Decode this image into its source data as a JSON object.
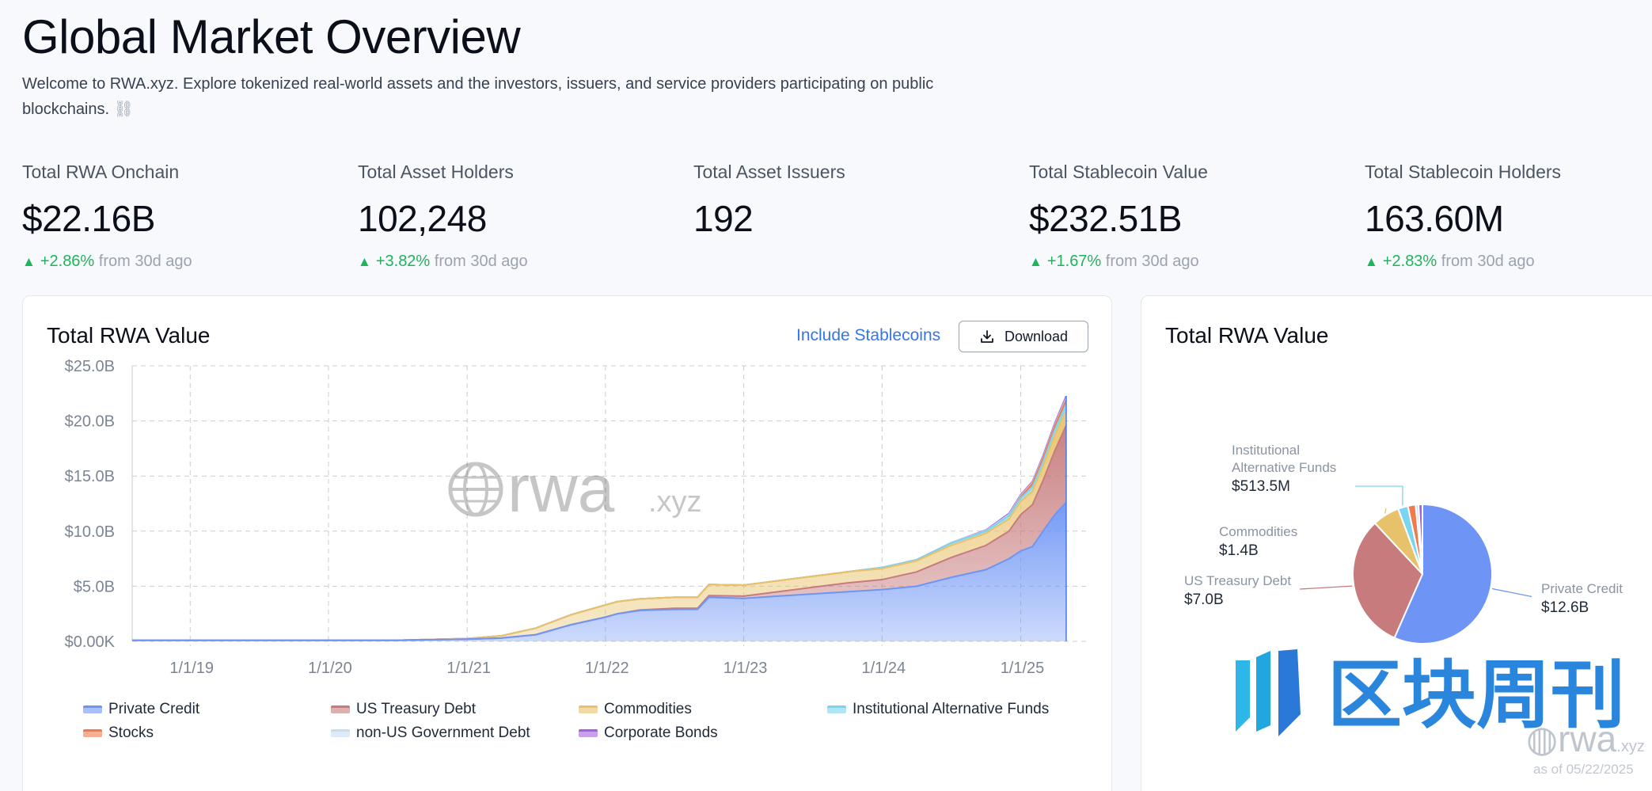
{
  "header": {
    "title": "Global Market Overview",
    "intro": "Welcome to RWA.xyz. Explore tokenized real-world assets and the investors, issuers, and service providers participating on public blockchains.",
    "intro_icon": "chain-link-icon"
  },
  "stats": [
    {
      "label": "Total RWA Onchain",
      "value": "$22.16B",
      "change": "+2.86%",
      "suffix": "from 30d ago"
    },
    {
      "label": "Total Asset Holders",
      "value": "102,248",
      "change": "+3.82%",
      "suffix": "from 30d ago"
    },
    {
      "label": "Total Asset Issuers",
      "value": "192",
      "change": "",
      "suffix": ""
    },
    {
      "label": "Total Stablecoin Value",
      "value": "$232.51B",
      "change": "+1.67%",
      "suffix": "from 30d ago"
    },
    {
      "label": "Total Stablecoin Holders",
      "value": "163.60M",
      "change": "+2.83%",
      "suffix": "from 30d ago"
    }
  ],
  "area_card": {
    "title": "Total RWA Value",
    "stablecoins_link": "Include Stablecoins",
    "download_label": "Download",
    "watermark": "rwa",
    "watermark_suffix": ".xyz"
  },
  "pie_card": {
    "title": "Total RWA Value",
    "watermark_cn": "区块周刊",
    "footer_brand": "rwa",
    "footer_brand_suffix": ".xyz",
    "as_of": "as of 05/22/2025"
  },
  "colors": {
    "private_credit": "#6e95f5",
    "us_treasury": "#c77b7c",
    "commodities": "#e8c26a",
    "institutional_alt": "#7ad6f0",
    "stocks": "#f07a4e",
    "non_us_gov": "#c6dcf1",
    "corporate_bonds": "#a35fe0",
    "up": "#1fb35b",
    "link": "#3576e4"
  },
  "chart_data": [
    {
      "type": "area",
      "title": "Total RWA Value",
      "x": [
        "2018-08",
        "2019-01",
        "2019-07",
        "2020-01",
        "2020-07",
        "2021-01",
        "2021-04",
        "2021-07",
        "2021-10",
        "2022-01",
        "2022-02",
        "2022-04",
        "2022-07",
        "2022-08",
        "2022-09",
        "2022-10",
        "2023-01",
        "2023-04",
        "2023-07",
        "2023-10",
        "2024-01",
        "2024-04",
        "2024-07",
        "2024-10",
        "2024-12",
        "2025-01",
        "2025-02",
        "2025-03",
        "2025-04",
        "2025-05"
      ],
      "x_ticks": [
        "1/1/19",
        "1/1/20",
        "1/1/21",
        "1/1/22",
        "1/1/23",
        "1/1/24",
        "1/1/25"
      ],
      "y_ticks": [
        "$0.00K",
        "$5.0B",
        "$10.0B",
        "$15.0B",
        "$20.0B",
        "$25.0B"
      ],
      "ylim": [
        0,
        25
      ],
      "grid": true,
      "legend_position": "bottom",
      "stacked": true,
      "series": [
        {
          "name": "Private Credit",
          "values": [
            0.1,
            0.1,
            0.1,
            0.1,
            0.1,
            0.2,
            0.3,
            0.6,
            1.5,
            2.2,
            2.5,
            2.8,
            2.9,
            2.9,
            2.9,
            4.0,
            3.9,
            4.1,
            4.3,
            4.5,
            4.7,
            5.0,
            5.8,
            6.5,
            7.5,
            8.2,
            8.6,
            10.0,
            11.5,
            12.6
          ]
        },
        {
          "name": "US Treasury Debt",
          "values": [
            0,
            0,
            0,
            0,
            0,
            0,
            0,
            0,
            0,
            0,
            0,
            0.05,
            0.1,
            0.1,
            0.1,
            0.15,
            0.2,
            0.4,
            0.6,
            0.8,
            0.9,
            1.3,
            1.8,
            2.2,
            2.5,
            3.3,
            3.8,
            4.6,
            5.8,
            7.0
          ]
        },
        {
          "name": "Commodities",
          "values": [
            0,
            0,
            0,
            0,
            0,
            0.05,
            0.2,
            0.6,
            0.9,
            1.1,
            1.1,
            1.0,
            1.0,
            1.0,
            1.0,
            1.0,
            1.0,
            1.0,
            1.0,
            1.0,
            1.0,
            1.0,
            1.1,
            1.1,
            1.1,
            1.2,
            1.2,
            1.3,
            1.4,
            1.4
          ]
        },
        {
          "name": "Institutional Alternative Funds",
          "values": [
            0,
            0,
            0,
            0,
            0,
            0,
            0,
            0,
            0,
            0,
            0,
            0,
            0,
            0,
            0,
            0,
            0,
            0,
            0,
            0,
            0.1,
            0.1,
            0.2,
            0.2,
            0.3,
            0.3,
            0.4,
            0.4,
            0.5,
            0.51
          ]
        },
        {
          "name": "Stocks",
          "values": [
            0,
            0,
            0,
            0,
            0,
            0,
            0,
            0,
            0,
            0,
            0,
            0,
            0,
            0,
            0,
            0,
            0,
            0,
            0,
            0,
            0,
            0,
            0,
            0,
            0,
            0.1,
            0.3,
            0.3,
            0.35,
            0.4
          ]
        },
        {
          "name": "non-US Government Debt",
          "values": [
            0,
            0,
            0,
            0,
            0,
            0,
            0,
            0,
            0,
            0,
            0,
            0,
            0,
            0,
            0,
            0,
            0,
            0,
            0,
            0,
            0,
            0,
            0.05,
            0.05,
            0.1,
            0.1,
            0.1,
            0.1,
            0.1,
            0.15
          ]
        },
        {
          "name": "Corporate Bonds",
          "values": [
            0,
            0,
            0,
            0,
            0,
            0,
            0,
            0,
            0,
            0,
            0,
            0,
            0,
            0,
            0,
            0,
            0,
            0,
            0,
            0,
            0,
            0,
            0,
            0.05,
            0.1,
            0.1,
            0.1,
            0.15,
            0.15,
            0.2
          ]
        }
      ]
    },
    {
      "type": "pie",
      "title": "Total RWA Value",
      "slices": [
        {
          "name": "Private Credit",
          "value": 12.6,
          "label": "$12.6B",
          "labelled": true
        },
        {
          "name": "US Treasury Debt",
          "value": 7.0,
          "label": "$7.0B",
          "labelled": true
        },
        {
          "name": "Commodities",
          "value": 1.4,
          "label": "$1.4B",
          "labelled": true
        },
        {
          "name": "Institutional\nAlternative Funds",
          "value": 0.5135,
          "label": "$513.5M",
          "labelled": true
        },
        {
          "name": "Stocks",
          "value": 0.4,
          "label": "",
          "labelled": false
        },
        {
          "name": "non-US Government Debt",
          "value": 0.15,
          "label": "",
          "labelled": false
        },
        {
          "name": "Corporate Bonds",
          "value": 0.2,
          "label": "",
          "labelled": false
        }
      ]
    }
  ]
}
